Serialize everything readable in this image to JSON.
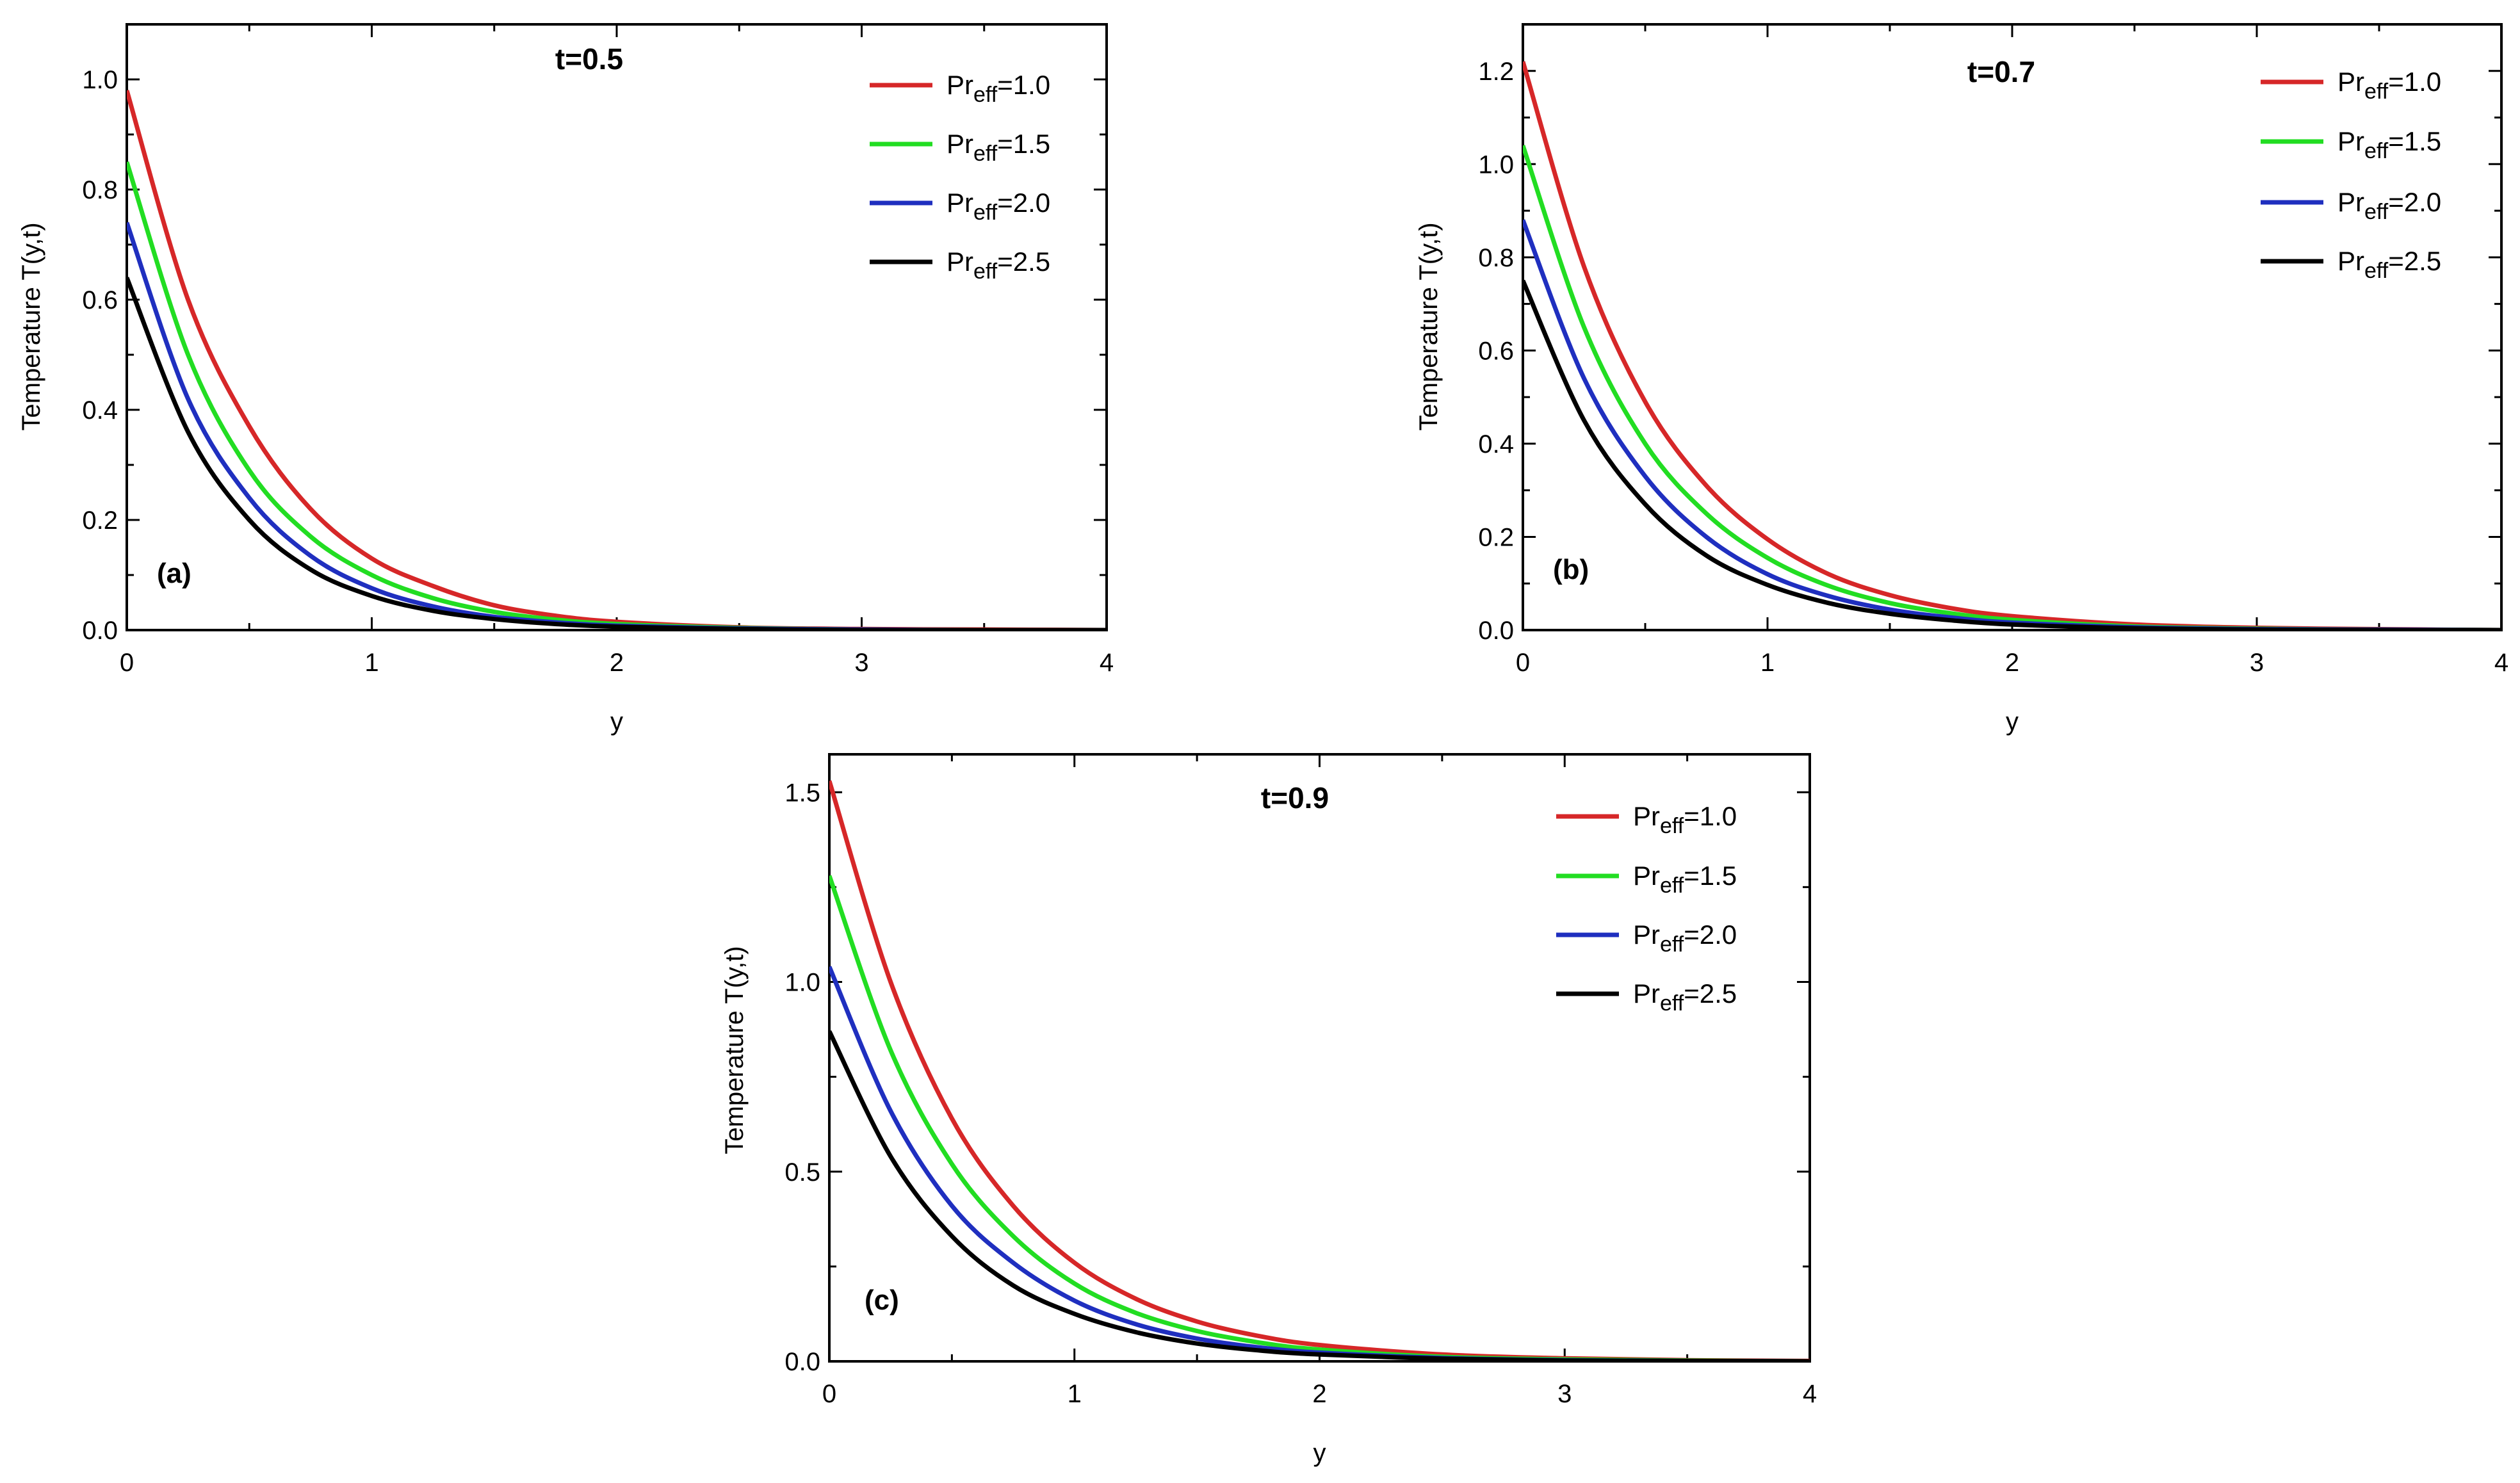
{
  "figure": {
    "legend_prefix": "Pr",
    "legend_subscript": "eff",
    "legend_eq": "="
  },
  "chart_data": [
    {
      "type": "line",
      "id": "a",
      "panel_label": "(a)",
      "time_label": "t=0.5",
      "xlabel": "y",
      "ylabel": "Temperature T(y,t)",
      "xlim": [
        0,
        4
      ],
      "ylim": [
        0,
        1.1
      ],
      "xticks": [
        0,
        1,
        2,
        3,
        4
      ],
      "xtick_labels": [
        "0",
        "1",
        "2",
        "3",
        "4"
      ],
      "yticks": [
        0,
        0.2,
        0.4,
        0.6,
        0.8,
        1.0
      ],
      "ytick_labels": [
        "0.0",
        "0.2",
        "0.4",
        "0.6",
        "0.8",
        "1.0"
      ],
      "x": [
        0,
        0.25,
        0.5,
        0.75,
        1.0,
        1.25,
        1.5,
        1.75,
        2.0,
        2.5,
        3.0,
        3.5,
        4.0
      ],
      "series": [
        {
          "name": "1.0",
          "color": "#d62728",
          "values": [
            0.98,
            0.6,
            0.37,
            0.22,
            0.13,
            0.08,
            0.045,
            0.026,
            0.015,
            0.005,
            0.002,
            0.001,
            0.0
          ]
        },
        {
          "name": "1.5",
          "color": "#22dd22",
          "values": [
            0.85,
            0.5,
            0.29,
            0.17,
            0.1,
            0.058,
            0.033,
            0.019,
            0.011,
            0.004,
            0.001,
            0.0,
            0.0
          ]
        },
        {
          "name": "2.0",
          "color": "#1f2fbf",
          "values": [
            0.74,
            0.42,
            0.24,
            0.135,
            0.076,
            0.043,
            0.024,
            0.014,
            0.008,
            0.003,
            0.001,
            0.0,
            0.0
          ]
        },
        {
          "name": "2.5",
          "color": "#000000",
          "values": [
            0.64,
            0.36,
            0.2,
            0.11,
            0.062,
            0.035,
            0.02,
            0.011,
            0.006,
            0.002,
            0.0,
            0.0,
            0.0
          ]
        }
      ]
    },
    {
      "type": "line",
      "id": "b",
      "panel_label": "(b)",
      "time_label": "t=0.7",
      "xlabel": "y",
      "ylabel": "Temperature T(y,t)",
      "xlim": [
        0,
        4
      ],
      "ylim": [
        0,
        1.3
      ],
      "xticks": [
        0,
        1,
        2,
        3,
        4
      ],
      "xtick_labels": [
        "0",
        "1",
        "2",
        "3",
        "4"
      ],
      "yticks": [
        0,
        0.2,
        0.4,
        0.6,
        0.8,
        1.0,
        1.2
      ],
      "ytick_labels": [
        "0.0",
        "0.2",
        "0.4",
        "0.6",
        "0.8",
        "1.0",
        "1.2"
      ],
      "x": [
        0,
        0.25,
        0.5,
        0.75,
        1.0,
        1.25,
        1.5,
        1.75,
        2.0,
        2.5,
        3.0,
        3.5,
        4.0
      ],
      "series": [
        {
          "name": "1.0",
          "color": "#d62728",
          "values": [
            1.22,
            0.78,
            0.49,
            0.31,
            0.195,
            0.12,
            0.075,
            0.047,
            0.03,
            0.012,
            0.005,
            0.002,
            0.0
          ]
        },
        {
          "name": "1.5",
          "color": "#22dd22",
          "values": [
            1.04,
            0.65,
            0.4,
            0.25,
            0.155,
            0.095,
            0.058,
            0.036,
            0.022,
            0.008,
            0.003,
            0.001,
            0.0
          ]
        },
        {
          "name": "2.0",
          "color": "#1f2fbf",
          "values": [
            0.88,
            0.54,
            0.33,
            0.2,
            0.12,
            0.073,
            0.044,
            0.027,
            0.016,
            0.006,
            0.002,
            0.001,
            0.0
          ]
        },
        {
          "name": "2.5",
          "color": "#000000",
          "values": [
            0.75,
            0.45,
            0.27,
            0.16,
            0.097,
            0.058,
            0.035,
            0.021,
            0.012,
            0.004,
            0.001,
            0.0,
            0.0
          ]
        }
      ]
    },
    {
      "type": "line",
      "id": "c",
      "panel_label": "(c)",
      "time_label": "t=0.9",
      "xlabel": "y",
      "ylabel": "Temperature T(y,t)",
      "xlim": [
        0,
        4
      ],
      "ylim": [
        0,
        1.6
      ],
      "xticks": [
        0,
        1,
        2,
        3,
        4
      ],
      "xtick_labels": [
        "0",
        "1",
        "2",
        "3",
        "4"
      ],
      "yticks": [
        0,
        0.5,
        1.0,
        1.5
      ],
      "ytick_labels": [
        "0.0",
        "0.5",
        "1.0",
        "1.5"
      ],
      "x": [
        0,
        0.25,
        0.5,
        0.75,
        1.0,
        1.25,
        1.5,
        1.75,
        2.0,
        2.5,
        3.0,
        3.5,
        4.0
      ],
      "series": [
        {
          "name": "1.0",
          "color": "#d62728",
          "values": [
            1.53,
            1.0,
            0.64,
            0.41,
            0.26,
            0.165,
            0.105,
            0.067,
            0.043,
            0.018,
            0.008,
            0.003,
            0.001
          ]
        },
        {
          "name": "1.5",
          "color": "#22dd22",
          "values": [
            1.28,
            0.82,
            0.52,
            0.33,
            0.205,
            0.128,
            0.08,
            0.05,
            0.031,
            0.012,
            0.005,
            0.002,
            0.0
          ]
        },
        {
          "name": "2.0",
          "color": "#1f2fbf",
          "values": [
            1.04,
            0.66,
            0.41,
            0.26,
            0.16,
            0.098,
            0.06,
            0.037,
            0.023,
            0.009,
            0.003,
            0.001,
            0.0
          ]
        },
        {
          "name": "2.5",
          "color": "#000000",
          "values": [
            0.87,
            0.54,
            0.33,
            0.2,
            0.125,
            0.077,
            0.047,
            0.029,
            0.018,
            0.007,
            0.002,
            0.001,
            0.0
          ]
        }
      ]
    }
  ]
}
